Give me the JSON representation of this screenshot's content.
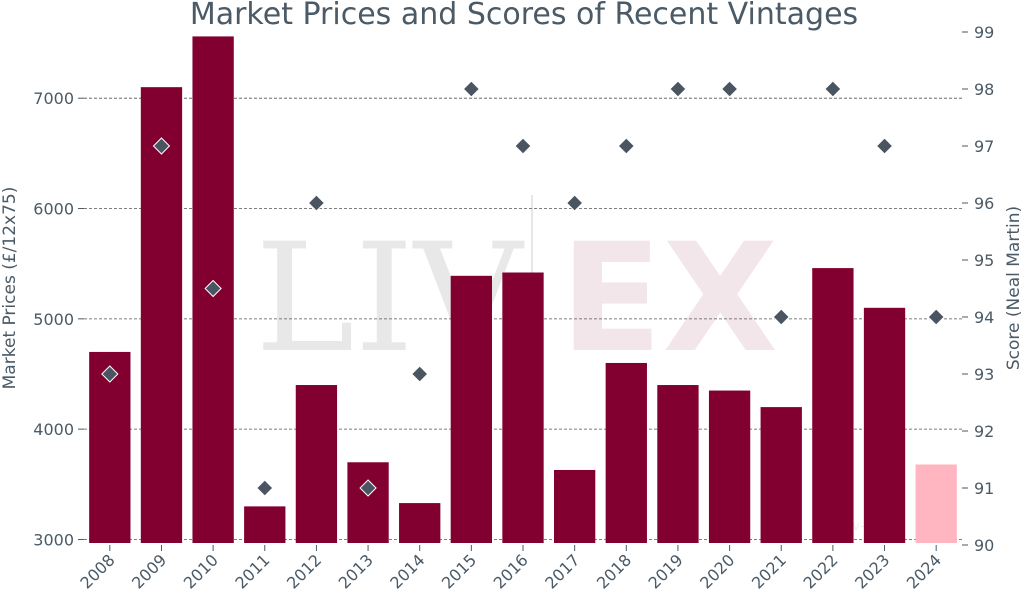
{
  "chart_data": {
    "type": "bar",
    "title": "Market Prices and Scores of Recent Vintages",
    "ylabel": "Market Prices (£/12x75)",
    "y2label": "Score (Neal Martin)",
    "ylim": [
      2950,
      7600
    ],
    "y2lim": [
      90,
      99
    ],
    "yticks": [
      3000,
      4000,
      5000,
      6000,
      7000
    ],
    "y2ticks": [
      90,
      91,
      92,
      93,
      94,
      95,
      96,
      97,
      98,
      99
    ],
    "categories": [
      "2008",
      "2009",
      "2010",
      "2011",
      "2012",
      "2013",
      "2014",
      "2015",
      "2016",
      "2017",
      "2018",
      "2019",
      "2020",
      "2021",
      "2022",
      "2023",
      "2024"
    ],
    "series": [
      {
        "kind": "bar",
        "axis": "left",
        "values": [
          4700,
          7100,
          7560,
          3300,
          4400,
          3700,
          3330,
          5390,
          5420,
          3630,
          4600,
          4400,
          4350,
          4200,
          5460,
          5100,
          3680
        ],
        "colors": [
          "#82002f",
          "#82002f",
          "#82002f",
          "#82002f",
          "#82002f",
          "#82002f",
          "#82002f",
          "#82002f",
          "#82002f",
          "#82002f",
          "#82002f",
          "#82002f",
          "#82002f",
          "#82002f",
          "#82002f",
          "#82002f",
          "#ffb6c1"
        ]
      },
      {
        "kind": "marker",
        "axis": "right",
        "values": [
          93,
          97,
          94.5,
          91,
          96,
          91,
          93,
          98,
          97,
          96,
          97,
          98,
          98,
          94,
          98,
          97,
          94
        ],
        "color": "#4a5561"
      }
    ],
    "grid": true
  },
  "watermark": {
    "left": "LIV",
    "right": "EX",
    "small": "liv-ex"
  },
  "colors": {
    "bar": "#82002f",
    "bar_highlight": "#ffb6c1",
    "marker": "#4a5561",
    "text": "#4a5a66"
  }
}
